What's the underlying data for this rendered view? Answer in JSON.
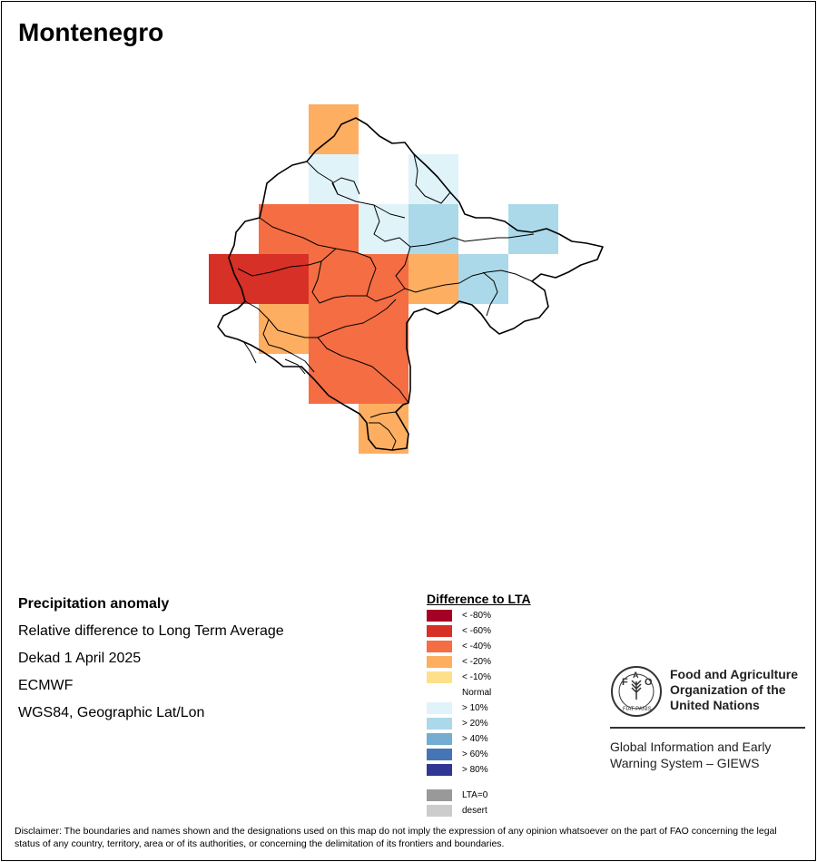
{
  "map": {
    "title": "Montenegro",
    "colors": {
      "lt80": "#a50026",
      "lt60": "#d73027",
      "lt40": "#f46d43",
      "lt20": "#fdae61",
      "lt10": "#fee08b",
      "normal": "#ffffff",
      "gt10": "#e0f3f8",
      "gt20": "#abd9e9",
      "gt40": "#74add1",
      "gt60": "#4575b4",
      "gt80": "#313695",
      "lta0": "#999999",
      "desert": "#cccccc"
    }
  },
  "info": {
    "heading": "Precipitation anomaly",
    "subtitle": "Relative difference to Long Term Average",
    "period": "Dekad 1 April 2025",
    "source": "ECMWF",
    "projection": "WGS84, Geographic Lat/Lon"
  },
  "legend": {
    "title": "Difference to LTA",
    "items": [
      {
        "label": "< -80%",
        "color": "#a50026"
      },
      {
        "label": "< -60%",
        "color": "#d73027"
      },
      {
        "label": "< -40%",
        "color": "#f46d43"
      },
      {
        "label": "< -20%",
        "color": "#fdae61"
      },
      {
        "label": "< -10%",
        "color": "#fee08b"
      },
      {
        "label": "Normal",
        "color": "#ffffff"
      },
      {
        "label": "> 10%",
        "color": "#e0f3f8"
      },
      {
        "label": "> 20%",
        "color": "#abd9e9"
      },
      {
        "label": "> 40%",
        "color": "#74add1"
      },
      {
        "label": "> 60%",
        "color": "#4575b4"
      },
      {
        "label": "> 80%",
        "color": "#313695"
      }
    ],
    "extra": [
      {
        "label": "LTA=0",
        "color": "#999999"
      },
      {
        "label": "desert",
        "color": "#cccccc"
      }
    ]
  },
  "logo": {
    "org_line1": "Food and Agriculture",
    "org_line2": "Organization of the",
    "org_line3": "United Nations",
    "emblem_letters": "FAO",
    "emblem_motto": "FIAT PANIS",
    "system_line1": "Global Information and Early",
    "system_line2": "Warning System – GIEWS"
  },
  "disclaimer": "Disclaimer: The boundaries and names shown and the designations used on this map do not imply the expression of any opinion whatsoever on the part of FAO concerning the legal status of any country, territory, area or of its authorities, or concerning the delimitation of its frontiers and boundaries."
}
